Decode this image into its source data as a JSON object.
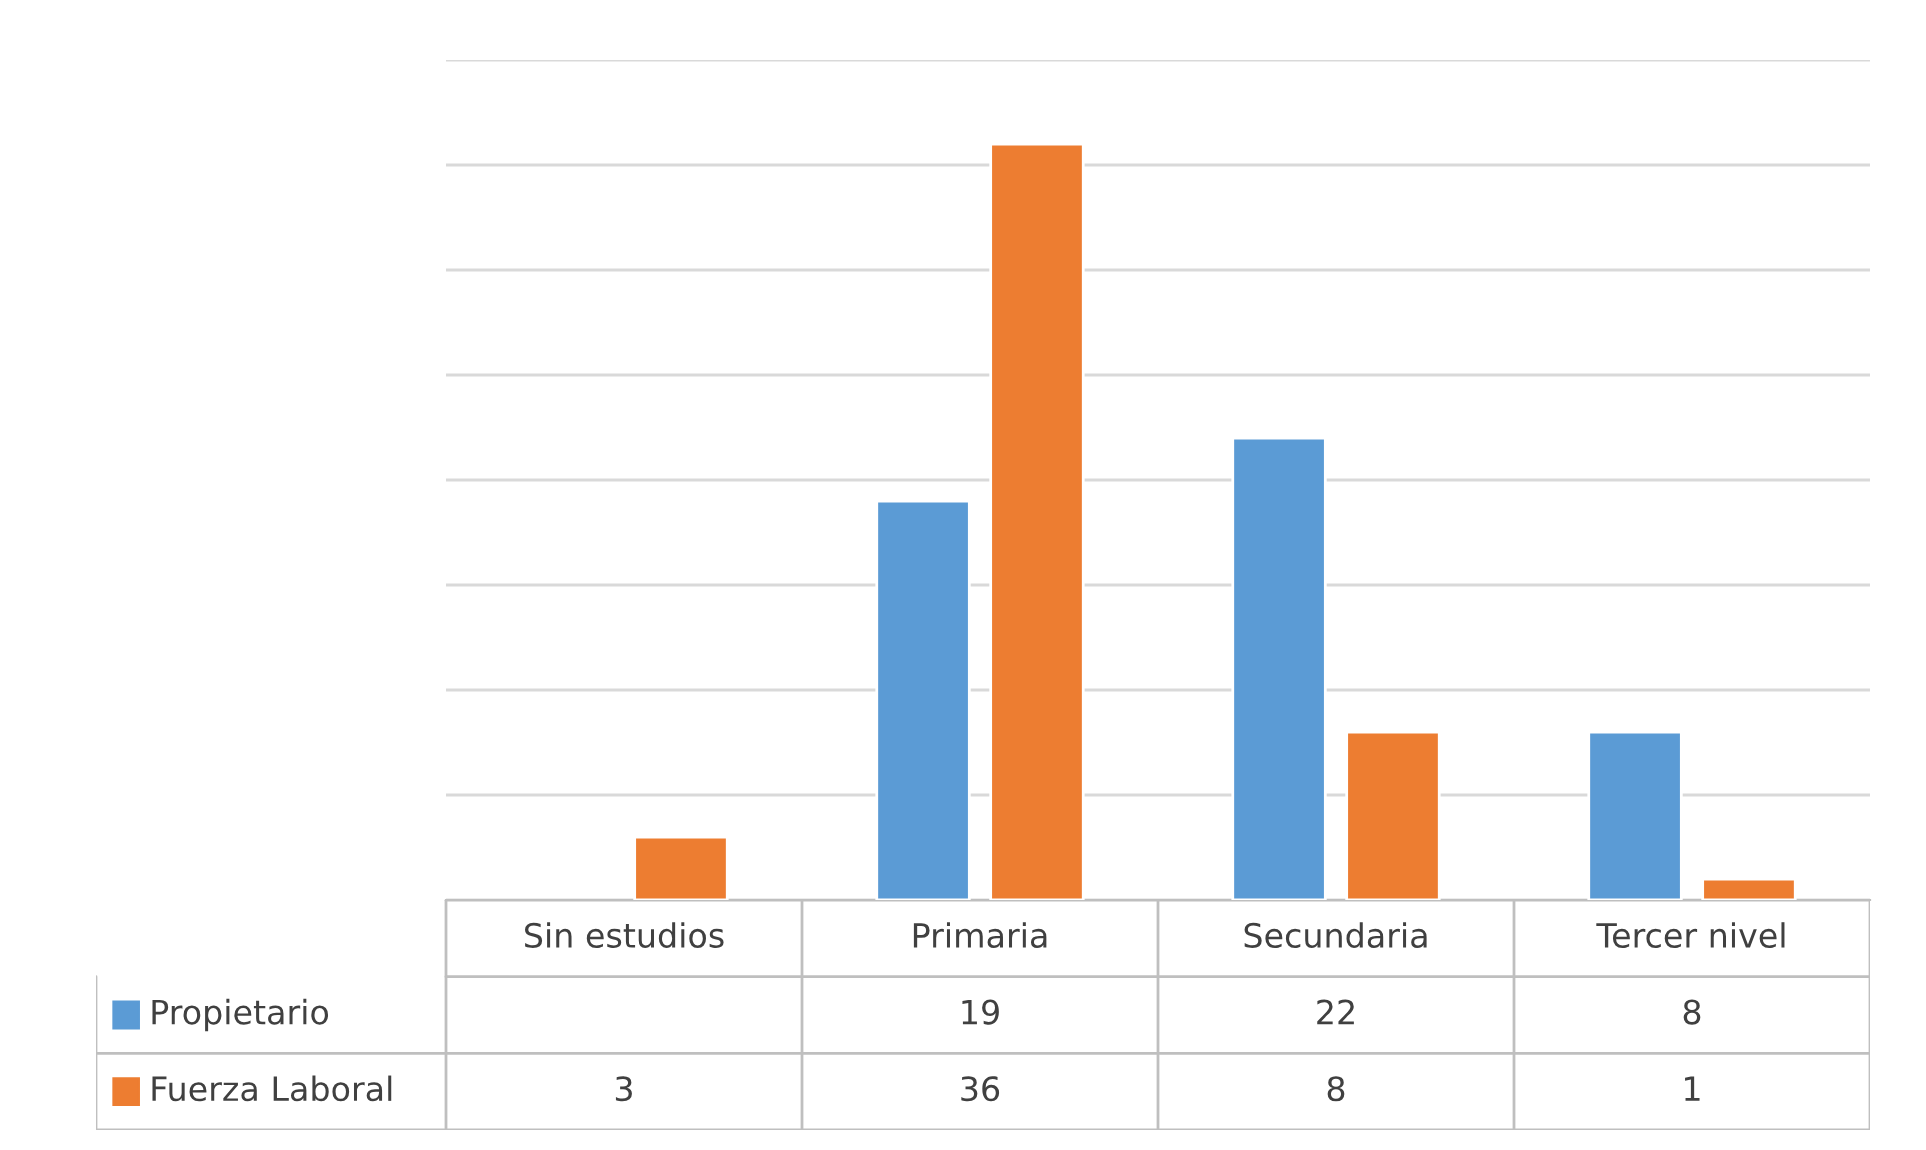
{
  "chart_data": {
    "type": "bar",
    "categories": [
      "Sin estudios",
      "Primaria",
      "Secundaria",
      "Tercer nivel"
    ],
    "series": [
      {
        "name": "Propietario",
        "color": "#5b9bd5",
        "values": [
          null,
          19,
          22,
          8
        ]
      },
      {
        "name": "Fuerza Laboral",
        "color": "#ed7d31",
        "values": [
          3,
          36,
          8,
          1
        ]
      }
    ],
    "ylim": [
      0,
      40
    ],
    "yticks": [
      {
        "value": 0,
        "label": null
      },
      {
        "value": 5,
        "label": null
      },
      {
        "value": 10,
        "label": null
      },
      {
        "value": 15,
        "label": null
      },
      {
        "value": 20,
        "label": null
      },
      {
        "value": 25,
        "label": null
      },
      {
        "value": 30,
        "label": null
      },
      {
        "value": 35,
        "label": null
      },
      {
        "value": 40,
        "label": null
      }
    ],
    "grid": "y",
    "tick_labels": "x",
    "data_labels": true,
    "legend": "bottom"
  }
}
